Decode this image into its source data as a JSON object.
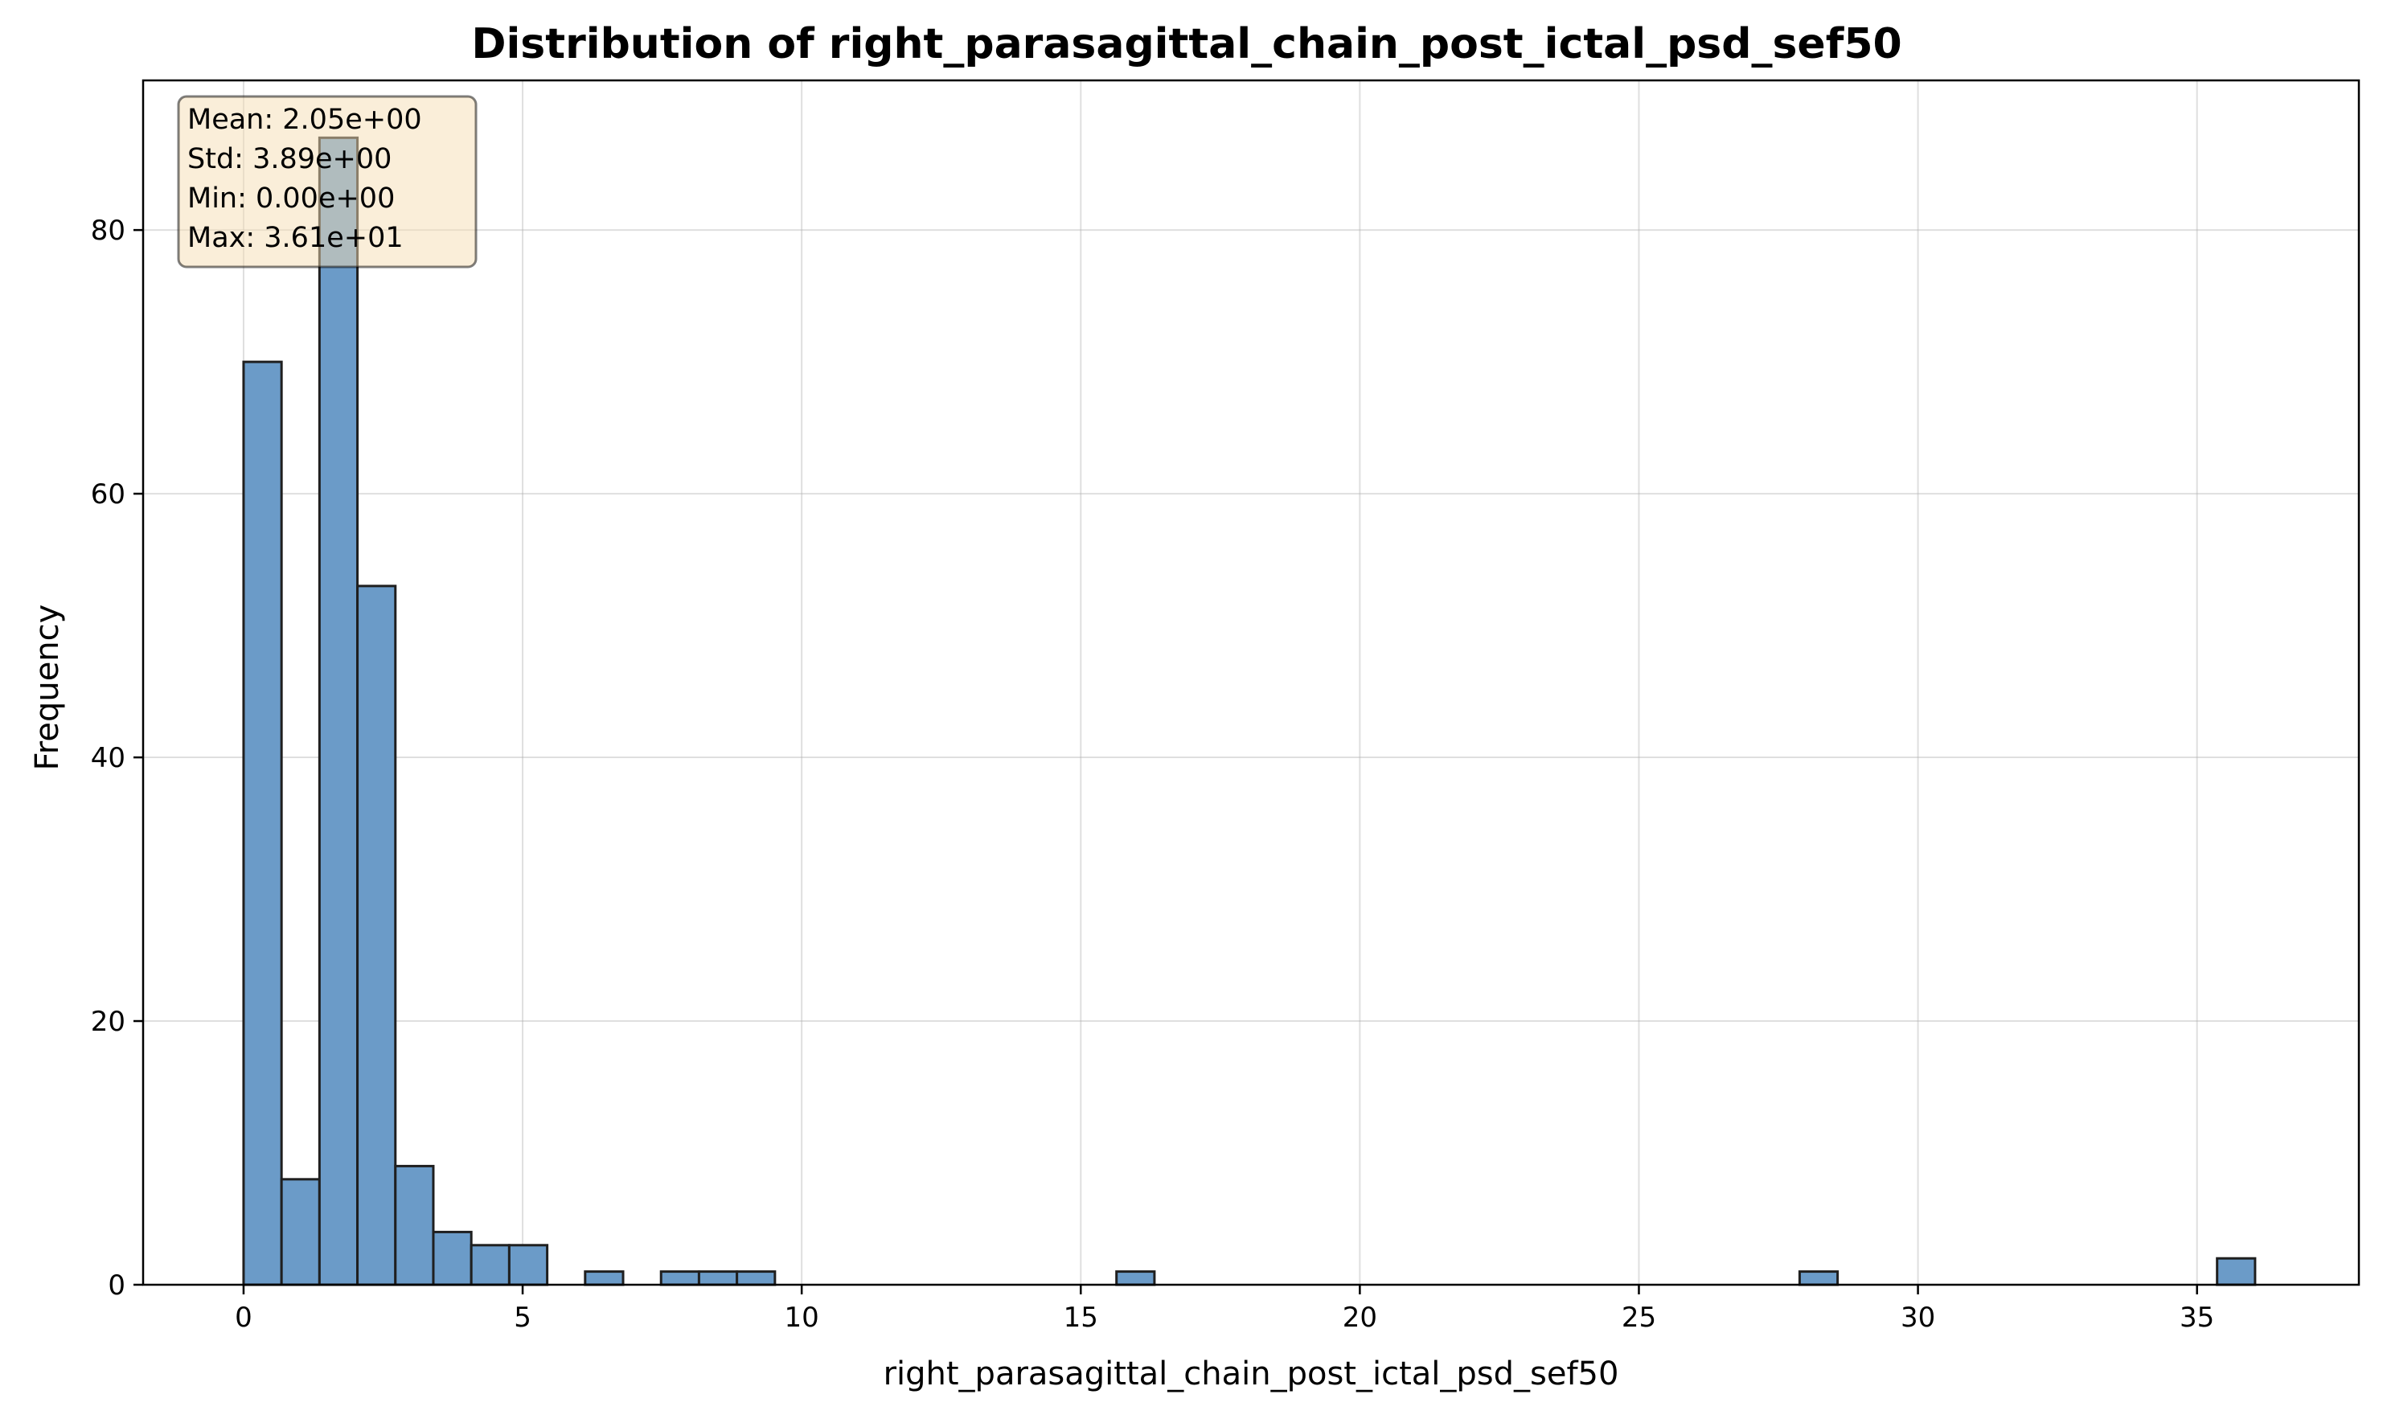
{
  "chart_data": {
    "type": "bar",
    "title": "Distribution of right_parasagittal_chain_post_ictal_psd_sef50",
    "xlabel": "right_parasagittal_chain_post_ictal_psd_sef50",
    "ylabel": "Frequency",
    "xlim": [
      -1.8,
      37.9
    ],
    "ylim": [
      0,
      91.35
    ],
    "xticks": [
      0,
      5,
      10,
      15,
      20,
      25,
      30,
      35
    ],
    "yticks": [
      0,
      20,
      40,
      60,
      80
    ],
    "grid": true,
    "bin_width": 0.68,
    "bins": [
      {
        "x0": 0.0,
        "x1": 0.68,
        "count": 70
      },
      {
        "x0": 0.68,
        "x1": 1.36,
        "count": 8
      },
      {
        "x0": 1.36,
        "x1": 2.04,
        "count": 87
      },
      {
        "x0": 2.04,
        "x1": 2.72,
        "count": 53
      },
      {
        "x0": 2.72,
        "x1": 3.4,
        "count": 9
      },
      {
        "x0": 3.4,
        "x1": 4.08,
        "count": 4
      },
      {
        "x0": 4.08,
        "x1": 4.76,
        "count": 3
      },
      {
        "x0": 4.76,
        "x1": 5.44,
        "count": 3
      },
      {
        "x0": 6.12,
        "x1": 6.8,
        "count": 1
      },
      {
        "x0": 7.48,
        "x1": 8.16,
        "count": 1
      },
      {
        "x0": 8.16,
        "x1": 8.84,
        "count": 1
      },
      {
        "x0": 8.84,
        "x1": 9.52,
        "count": 1
      },
      {
        "x0": 15.64,
        "x1": 16.32,
        "count": 1
      },
      {
        "x0": 27.88,
        "x1": 28.56,
        "count": 1
      },
      {
        "x0": 35.36,
        "x1": 36.04,
        "count": 2
      }
    ],
    "bar_color": "#6b9bc8",
    "bar_edge_color": "#1f1f1f",
    "stats_box": {
      "lines": [
        "Mean: 2.05e+00",
        "Std: 3.89e+00",
        "Min: 0.00e+00",
        "Max: 3.61e+01"
      ],
      "placement": "top-left",
      "background": "#f5deb3"
    }
  }
}
